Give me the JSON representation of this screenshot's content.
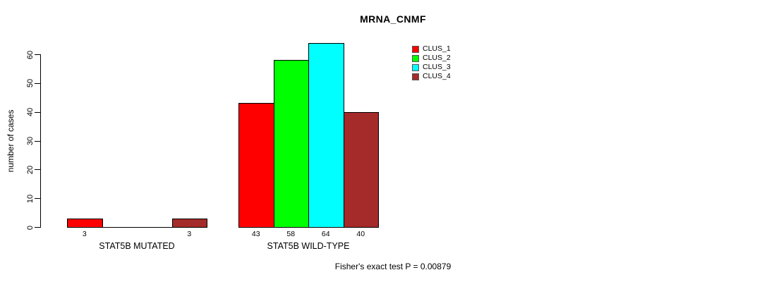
{
  "chart_data": {
    "type": "bar",
    "title": "MRNA_CNMF",
    "xlabel": "",
    "ylabel": "number of cases",
    "ylim": [
      0,
      64
    ],
    "yticks": [
      0,
      10,
      20,
      30,
      40,
      50,
      60
    ],
    "grid": false,
    "legend_position": "top-right",
    "categories": [
      "STAT5B MUTATED",
      "STAT5B WILD-TYPE"
    ],
    "series": [
      {
        "name": "CLUS_1",
        "color": "#FF0000",
        "values": [
          3,
          43
        ]
      },
      {
        "name": "CLUS_2",
        "color": "#00FF00",
        "values": [
          0,
          58
        ]
      },
      {
        "name": "CLUS_3",
        "color": "#00FFFF",
        "values": [
          0,
          64
        ]
      },
      {
        "name": "CLUS_4",
        "color": "#A52A2A",
        "values": [
          3,
          40
        ]
      }
    ],
    "bar_value_labels": [
      [
        "3",
        null,
        null,
        "3"
      ],
      [
        "43",
        "58",
        "64",
        "40"
      ]
    ],
    "annotation": "Fisher's exact test P = 0.00879"
  }
}
